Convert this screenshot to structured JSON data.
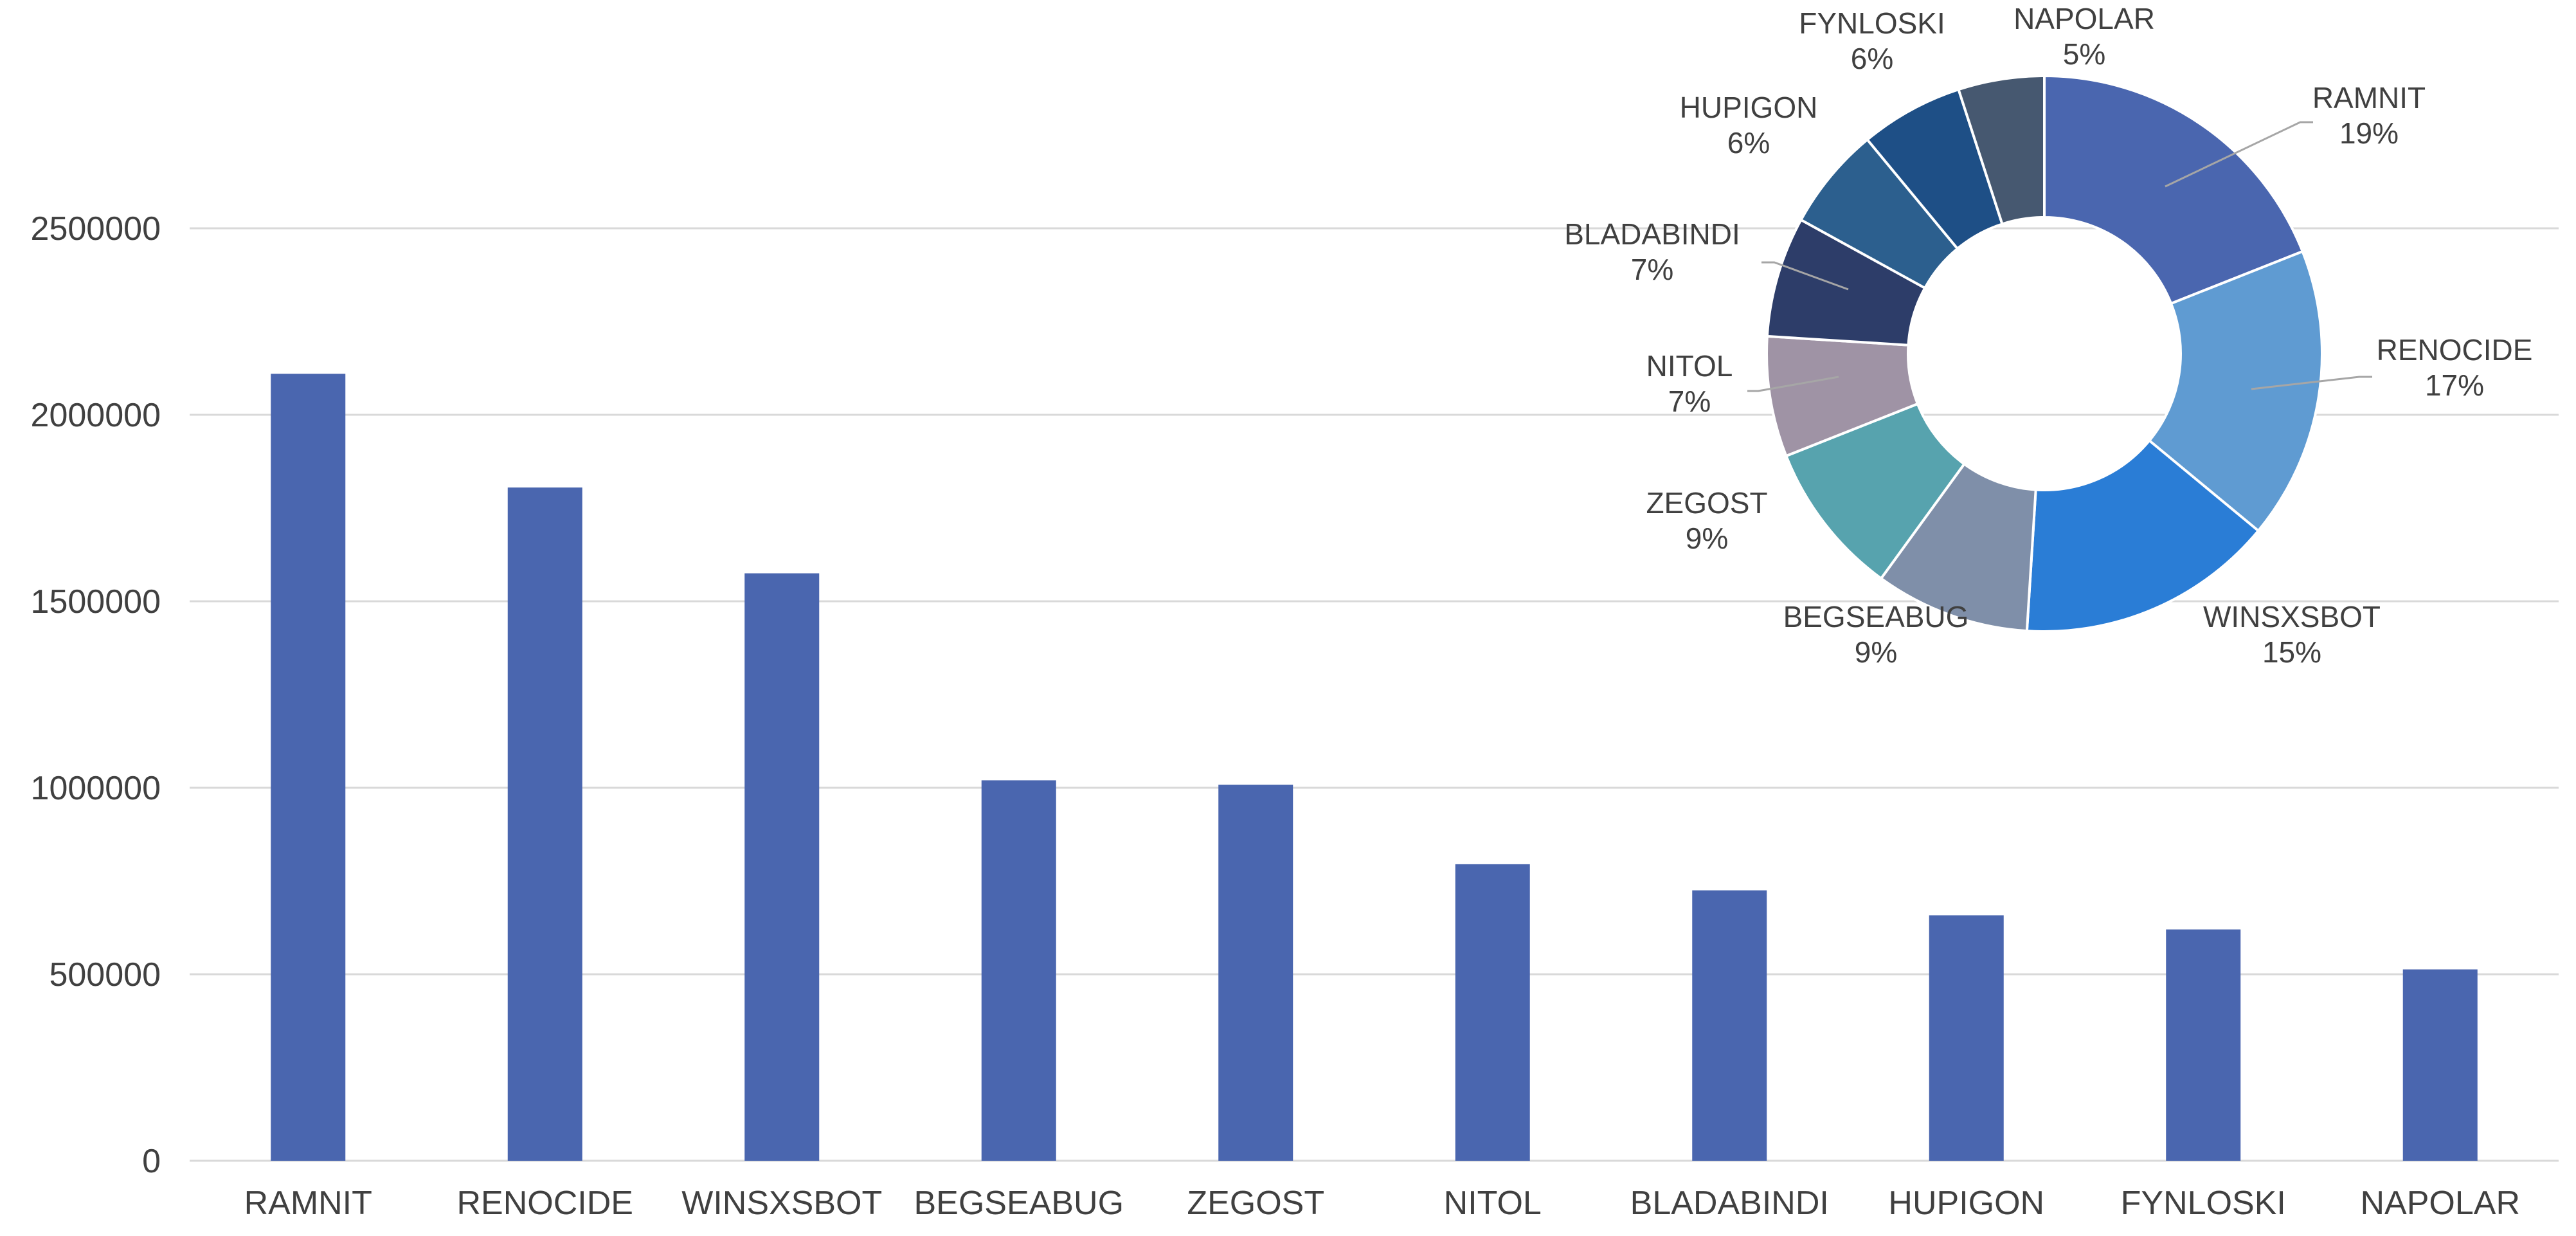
{
  "chart_data": [
    {
      "type": "bar",
      "categories": [
        "RAMNIT",
        "RENOCIDE",
        "WINSXSBOT",
        "BEGSEABUG",
        "ZEGOST",
        "NITOL",
        "BLADABINDI",
        "HUPIGON",
        "FYNLOSKI",
        "NAPOLAR"
      ],
      "values": [
        2110000,
        1805000,
        1575000,
        1020000,
        1008000,
        795000,
        725000,
        658000,
        620000,
        513000
      ],
      "yticks": [
        "0",
        "500000",
        "1000000",
        "1500000",
        "2000000",
        "2500000"
      ],
      "ylim": [
        0,
        2700000
      ],
      "grid": true,
      "bar_color": "#4A66AF",
      "grid_color": "#D9D9D9"
    },
    {
      "type": "pie",
      "style": "donut",
      "slices": [
        {
          "label": "RAMNIT",
          "percent_label": "19%",
          "value": 19,
          "color": "#4A66AF"
        },
        {
          "label": "RENOCIDE",
          "percent_label": "17%",
          "value": 17,
          "color": "#5F9BD2"
        },
        {
          "label": "WINSXSBOT",
          "percent_label": "15%",
          "value": 15,
          "color": "#2A7DD6"
        },
        {
          "label": "BEGSEABUG",
          "percent_label": "9%",
          "value": 9,
          "color": "#7F8FA9"
        },
        {
          "label": "ZEGOST",
          "percent_label": "9%",
          "value": 9,
          "color": "#57A3AE"
        },
        {
          "label": "NITOL",
          "percent_label": "7%",
          "value": 7,
          "color": "#9F93A5"
        },
        {
          "label": "BLADABINDI",
          "percent_label": "7%",
          "value": 7,
          "color": "#2D3D69"
        },
        {
          "label": "HUPIGON",
          "percent_label": "6%",
          "value": 6,
          "color": "#2C5F8E"
        },
        {
          "label": "FYNLOSKI",
          "percent_label": "6%",
          "value": 6,
          "color": "#1E4F86"
        },
        {
          "label": "NAPOLAR",
          "percent_label": "5%",
          "value": 5,
          "color": "#465870"
        }
      ]
    }
  ]
}
